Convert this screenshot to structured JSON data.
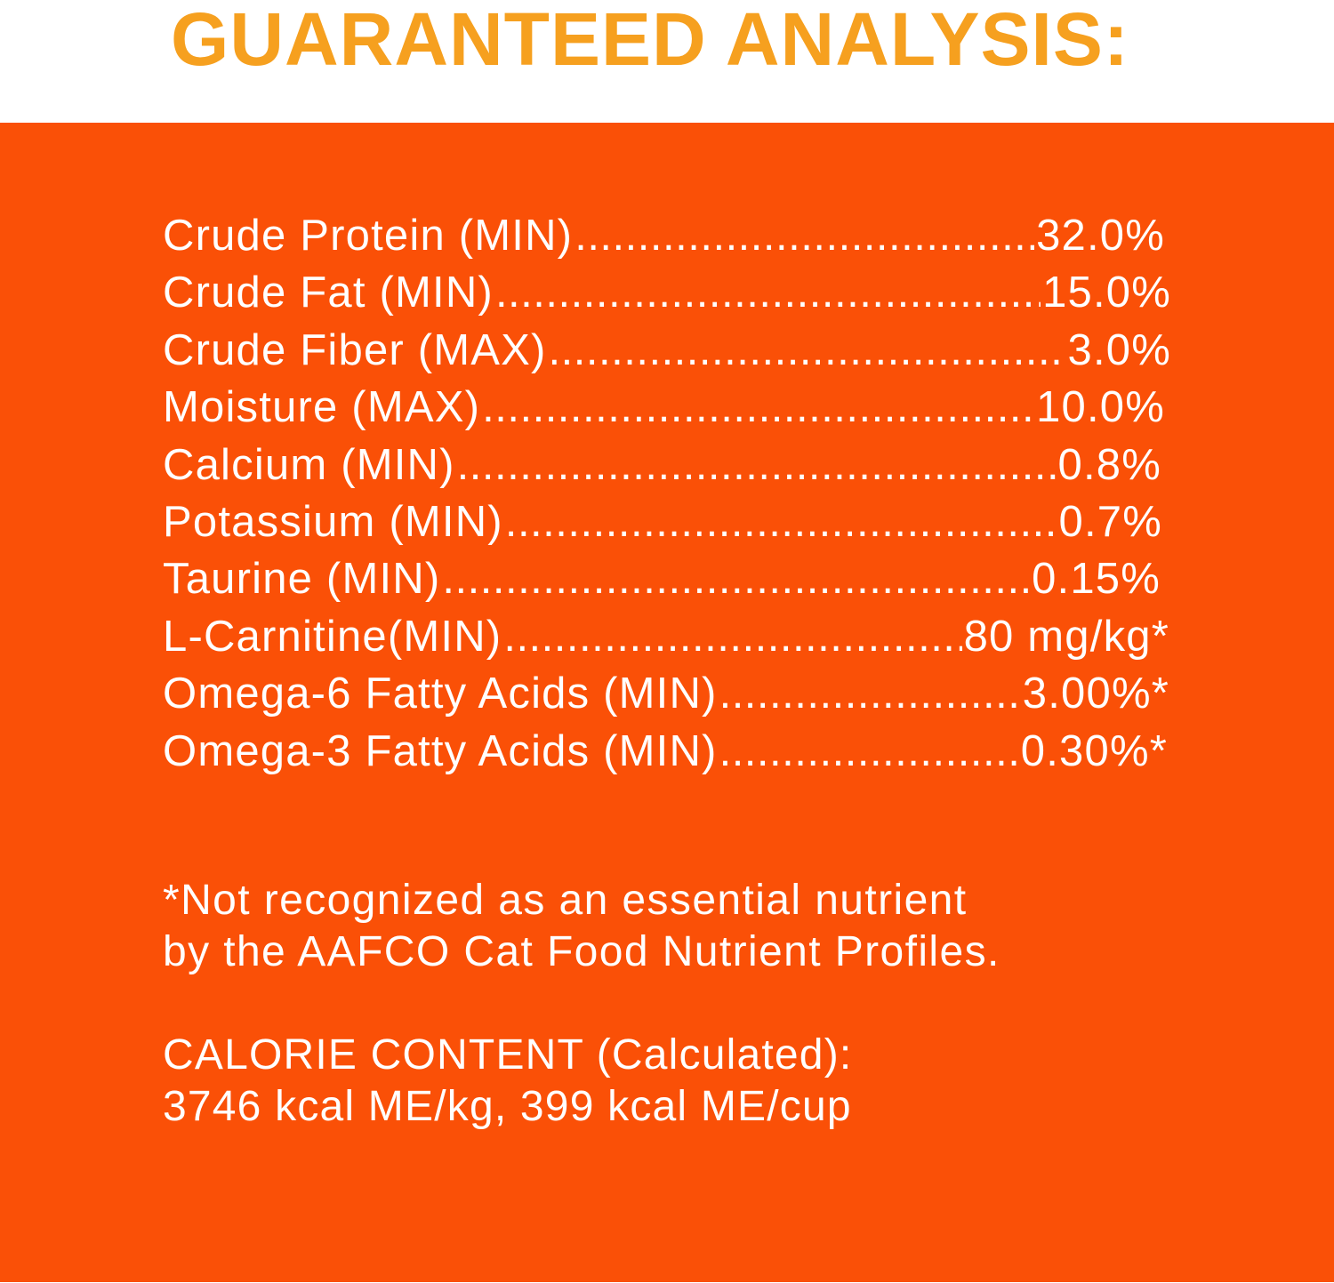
{
  "title": "GUARANTEED ANALYSIS:",
  "analysis": [
    {
      "name": "Crude Protein (MIN)",
      "value": "32.0%"
    },
    {
      "name": "Crude Fat (MIN)",
      "value": "15.0%"
    },
    {
      "name": "Crude Fiber (MAX)",
      "value": "3.0%"
    },
    {
      "name": "Moisture (MAX)",
      "value": "10.0%"
    },
    {
      "name": "Calcium (MIN)",
      "value": "0.8%"
    },
    {
      "name": "Potassium (MIN)",
      "value": "0.7%"
    },
    {
      "name": "Taurine (MIN)",
      "value": "0.15%"
    },
    {
      "name": "L-Carnitine(MIN)",
      "value": "80 mg/kg*"
    },
    {
      "name": "Omega-6 Fatty Acids (MIN)",
      "value": "3.00%*"
    },
    {
      "name": "Omega-3 Fatty Acids (MIN)",
      "value": "0.30%*"
    }
  ],
  "footnote": {
    "line1": "*Not recognized as an essential nutrient",
    "line2": "by the AAFCO Cat Food Nutrient Profiles."
  },
  "calorie": {
    "heading": "CALORIE CONTENT (Calculated):",
    "value": "3746 kcal ME/kg, 399 kcal ME/cup"
  },
  "colors": {
    "title": "#f6a01f",
    "panel": "#fa5007",
    "text": "#ffffff"
  }
}
